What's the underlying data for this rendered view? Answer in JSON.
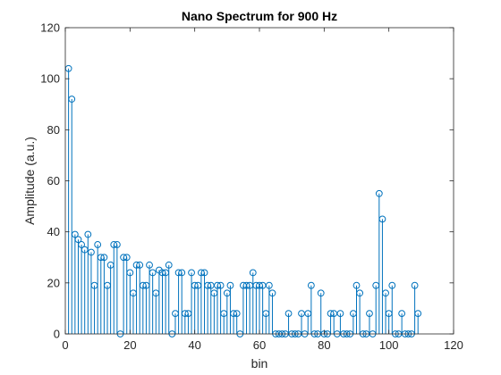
{
  "chart_data": {
    "type": "stem",
    "title": "Nano Spectrum for 900 Hz",
    "xlabel": "bin",
    "ylabel": "Amplitude (a.u.)",
    "xlim": [
      0,
      120
    ],
    "ylim": [
      0,
      120
    ],
    "xticks": [
      0,
      20,
      40,
      60,
      80,
      100,
      120
    ],
    "yticks": [
      0,
      20,
      40,
      60,
      80,
      100,
      120
    ],
    "grid": false,
    "color": "#0072BD",
    "marker": "circle",
    "x": [
      1,
      2,
      3,
      4,
      5,
      6,
      7,
      8,
      9,
      10,
      11,
      12,
      13,
      14,
      15,
      16,
      17,
      18,
      19,
      20,
      21,
      22,
      23,
      24,
      25,
      26,
      27,
      28,
      29,
      30,
      31,
      32,
      33,
      34,
      35,
      36,
      37,
      38,
      39,
      40,
      41,
      42,
      43,
      44,
      45,
      46,
      47,
      48,
      49,
      50,
      51,
      52,
      53,
      54,
      55,
      56,
      57,
      58,
      59,
      60,
      61,
      62,
      63,
      64,
      65,
      66,
      67,
      68,
      69,
      70,
      71,
      72,
      73,
      74,
      75,
      76,
      77,
      78,
      79,
      80,
      81,
      82,
      83,
      84,
      85,
      86,
      87,
      88,
      89,
      90,
      91,
      92,
      93,
      94,
      95,
      96,
      97,
      98,
      99,
      100,
      101,
      102,
      103,
      104,
      105,
      106,
      107,
      108,
      109
    ],
    "y": [
      104,
      92,
      39,
      37,
      35,
      33,
      39,
      32,
      19,
      35,
      30,
      30,
      19,
      27,
      35,
      35,
      0,
      30,
      30,
      24,
      16,
      27,
      27,
      19,
      19,
      27,
      24,
      16,
      25,
      24,
      24,
      27,
      0,
      8,
      24,
      24,
      8,
      8,
      24,
      19,
      19,
      24,
      24,
      19,
      19,
      16,
      19,
      19,
      8,
      16,
      19,
      8,
      8,
      0,
      19,
      19,
      19,
      24,
      19,
      19,
      19,
      8,
      19,
      16,
      0,
      0,
      0,
      0,
      8,
      0,
      0,
      0,
      8,
      0,
      8,
      19,
      0,
      0,
      16,
      0,
      0,
      8,
      8,
      0,
      8,
      0,
      0,
      0,
      8,
      19,
      16,
      0,
      0,
      8,
      0,
      19,
      55,
      45,
      16,
      8,
      19,
      0,
      0,
      8,
      0,
      0,
      0,
      19,
      8
    ]
  }
}
